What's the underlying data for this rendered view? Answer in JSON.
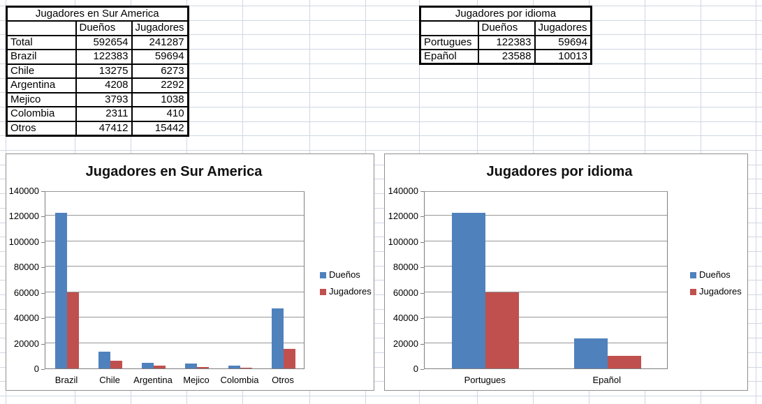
{
  "tables": [
    {
      "title": "Jugadores en Sur America",
      "columns": [
        "",
        "Dueños",
        "Jugadores"
      ],
      "rows": [
        {
          "label": "Total",
          "duenos": "592654",
          "jugadores": "241287"
        },
        {
          "label": "Brazil",
          "duenos": "122383",
          "jugadores": "59694"
        },
        {
          "label": "Chile",
          "duenos": "13275",
          "jugadores": "6273"
        },
        {
          "label": "Argentina",
          "duenos": "4208",
          "jugadores": "2292"
        },
        {
          "label": "Mejico",
          "duenos": "3793",
          "jugadores": "1038"
        },
        {
          "label": "Colombia",
          "duenos": "2311",
          "jugadores": "410"
        },
        {
          "label": "Otros",
          "duenos": "47412",
          "jugadores": "15442"
        }
      ]
    },
    {
      "title": "Jugadores por idioma",
      "columns": [
        "",
        "Dueños",
        "Jugadores"
      ],
      "rows": [
        {
          "label": "Portugues",
          "duenos": "122383",
          "jugadores": "59694"
        },
        {
          "label": "Epañol",
          "duenos": "23588",
          "jugadores": "10013"
        }
      ]
    }
  ],
  "chart_data": [
    {
      "type": "bar",
      "title": "Jugadores en Sur America",
      "categories": [
        "Brazil",
        "Chile",
        "Argentina",
        "Mejico",
        "Colombia",
        "Otros"
      ],
      "series": [
        {
          "name": "Dueños",
          "color": "#4F81BD",
          "values": [
            122383,
            13275,
            4208,
            3793,
            2311,
            47412
          ]
        },
        {
          "name": "Jugadores",
          "color": "#C0504D",
          "values": [
            59694,
            6273,
            2292,
            1038,
            410,
            15442
          ]
        }
      ],
      "ylim": [
        0,
        140000
      ],
      "ytick_step": 20000,
      "ytick_labels": [
        "0",
        "20000",
        "40000",
        "60000",
        "80000",
        "100000",
        "120000",
        "140000"
      ],
      "grid": true,
      "legend_position": "right"
    },
    {
      "type": "bar",
      "title": "Jugadores por idioma",
      "categories": [
        "Portugues",
        "Epañol"
      ],
      "series": [
        {
          "name": "Dueños",
          "color": "#4F81BD",
          "values": [
            122383,
            23588
          ]
        },
        {
          "name": "Jugadores",
          "color": "#C0504D",
          "values": [
            59694,
            10013
          ]
        }
      ],
      "ylim": [
        0,
        140000
      ],
      "ytick_step": 20000,
      "ytick_labels": [
        "0",
        "20000",
        "40000",
        "60000",
        "80000",
        "100000",
        "120000",
        "140000"
      ],
      "grid": true,
      "legend_position": "right"
    }
  ],
  "colors": {
    "series_duenos": "#4F81BD",
    "series_jugadores": "#C0504D",
    "sheet_gridline": "#cfd6e4",
    "chart_border": "#8f8f8f",
    "chart_gridline": "#969696"
  }
}
